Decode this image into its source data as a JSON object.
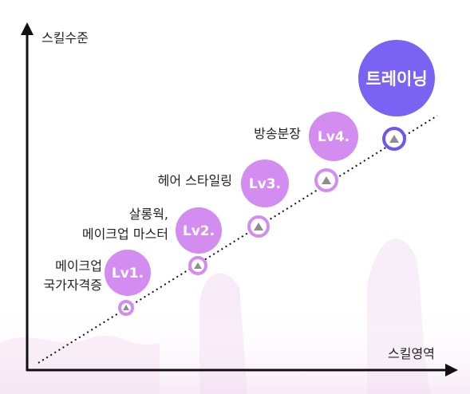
{
  "axes": {
    "y_label": "스킬수준",
    "x_label": "스킬영역"
  },
  "levels": [
    {
      "label": "Lv1.",
      "desc_lines": [
        "메이크업",
        "국가자격증"
      ]
    },
    {
      "label": "Lv2.",
      "desc_lines": [
        "살롱웍,",
        "메이크업 마스터"
      ]
    },
    {
      "label": "Lv3.",
      "desc_lines": [
        "헤어 스타일링"
      ]
    },
    {
      "label": "Lv4.",
      "desc_lines": [
        "방송분장"
      ]
    }
  ],
  "goal": {
    "label": "트레이닝"
  },
  "colors": {
    "level_bubble": "#d38cf0",
    "level_ring": "#d38cf0",
    "goal_bubble": "#7a63f3",
    "goal_ring": "#6d55ee",
    "axis": "#111111"
  }
}
